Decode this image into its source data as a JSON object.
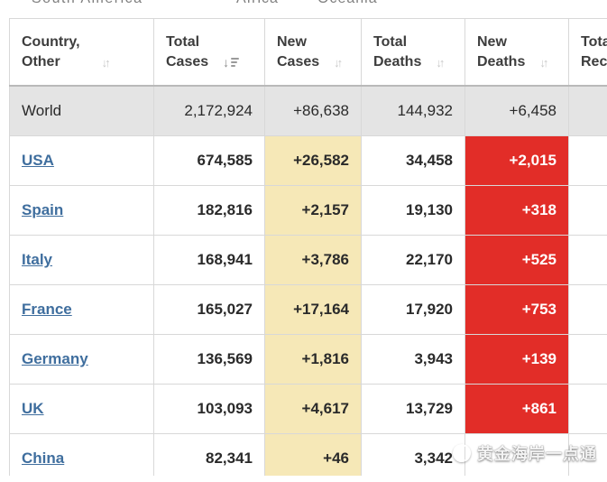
{
  "tabs": {
    "items": [
      {
        "label": "South America"
      },
      {
        "label": "Africa"
      },
      {
        "label": "Oceania"
      }
    ]
  },
  "table": {
    "columns": [
      {
        "line1": "Country,",
        "line2": "Other",
        "sort": "inactive"
      },
      {
        "line1": "Total",
        "line2": "Cases",
        "sort": "active-desc"
      },
      {
        "line1": "New",
        "line2": "Cases",
        "sort": "inactive"
      },
      {
        "line1": "Total",
        "line2": "Deaths",
        "sort": "inactive"
      },
      {
        "line1": "New",
        "line2": "Deaths",
        "sort": "inactive"
      },
      {
        "line1": "Total",
        "line2": "Recovered",
        "sort": "none"
      }
    ],
    "world": {
      "label": "World",
      "total_cases": "2,172,924",
      "new_cases": "+86,638",
      "total_deaths": "144,932",
      "new_deaths": "+6,458"
    },
    "rows": [
      {
        "country": "USA",
        "total_cases": "674,585",
        "new_cases": "+26,582",
        "total_deaths": "34,458",
        "new_deaths": "+2,015"
      },
      {
        "country": "Spain",
        "total_cases": "182,816",
        "new_cases": "+2,157",
        "total_deaths": "19,130",
        "new_deaths": "+318"
      },
      {
        "country": "Italy",
        "total_cases": "168,941",
        "new_cases": "+3,786",
        "total_deaths": "22,170",
        "new_deaths": "+525"
      },
      {
        "country": "France",
        "total_cases": "165,027",
        "new_cases": "+17,164",
        "total_deaths": "17,920",
        "new_deaths": "+753"
      },
      {
        "country": "Germany",
        "total_cases": "136,569",
        "new_cases": "+1,816",
        "total_deaths": "3,943",
        "new_deaths": "+139"
      },
      {
        "country": "UK",
        "total_cases": "103,093",
        "new_cases": "+4,617",
        "total_deaths": "13,729",
        "new_deaths": "+861"
      },
      {
        "country": "China",
        "total_cases": "82,341",
        "new_cases": "+46",
        "total_deaths": "3,342",
        "new_deaths": ""
      }
    ]
  },
  "icons": {
    "sort_inactive": "↓↑",
    "sort_active_arrow": "↓"
  },
  "watermark": {
    "text": "黄金海岸一点通"
  },
  "colors": {
    "new_cases_highlight": "#F6E8B7",
    "new_deaths_highlight": "#E22D28",
    "world_row_bg": "#E4E4E4",
    "link_blue": "#3F6E9E"
  }
}
